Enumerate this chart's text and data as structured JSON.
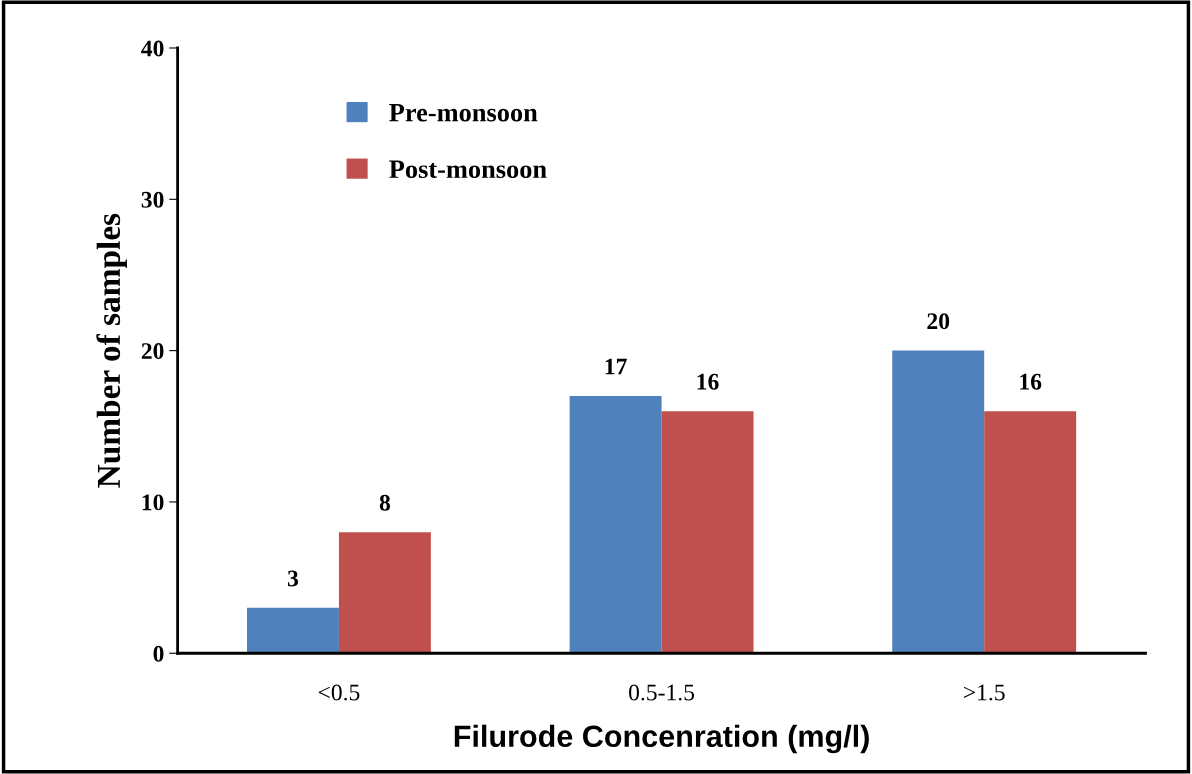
{
  "chart_data": {
    "type": "bar",
    "xlabel": "Filurode Concenration (mg/l)",
    "ylabel": "Number of samples",
    "categories": [
      "<0.5",
      "0.5-1.5",
      ">1.5"
    ],
    "series": [
      {
        "name": "Pre-monsoon",
        "color": "#4f81bd",
        "values": [
          3,
          17,
          20
        ]
      },
      {
        "name": "Post-monsoon",
        "color": "#c0504d",
        "values": [
          8,
          16,
          16
        ]
      }
    ],
    "ylim": [
      0,
      40
    ],
    "yticks": [
      0,
      10,
      20,
      30,
      40
    ],
    "data_labels": true,
    "legend": "top left",
    "grid": false
  }
}
